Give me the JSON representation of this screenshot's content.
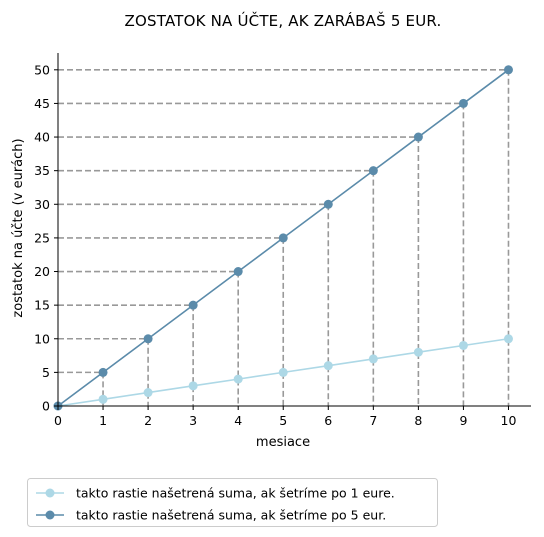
{
  "chart_data": {
    "type": "line",
    "title": "ZOSTATOK NA ÚČTE, AK ZARÁBAŠ 5 EUR.",
    "xlabel": "mesiace",
    "ylabel": "zostatok na účte (v eurách)",
    "xlim": [
      0,
      10.5
    ],
    "ylim": [
      0,
      52.5
    ],
    "xticks": [
      0,
      1,
      2,
      3,
      4,
      5,
      6,
      7,
      8,
      9,
      10
    ],
    "yticks": [
      0,
      5,
      10,
      15,
      20,
      25,
      30,
      35,
      40,
      45,
      50
    ],
    "x": [
      0,
      1,
      2,
      3,
      4,
      5,
      6,
      7,
      8,
      9,
      10
    ],
    "series": [
      {
        "name": "takto rastie našetrená suma, ak šetríme po 1 eure.",
        "values": [
          0,
          1,
          2,
          3,
          4,
          5,
          6,
          7,
          8,
          9,
          10
        ],
        "color": "#add8e6"
      },
      {
        "name": "takto rastie našetrená suma, ak šetríme po 5 eur.",
        "values": [
          0,
          5,
          10,
          15,
          20,
          25,
          30,
          35,
          40,
          45,
          50
        ],
        "color": "#5b8baa"
      }
    ],
    "guide_lines": "dashed gray lines from each point of the 5-eur series to both axes",
    "guide_color": "#999999",
    "grid": false,
    "legend_placement": "bottom-left, outside plot"
  }
}
